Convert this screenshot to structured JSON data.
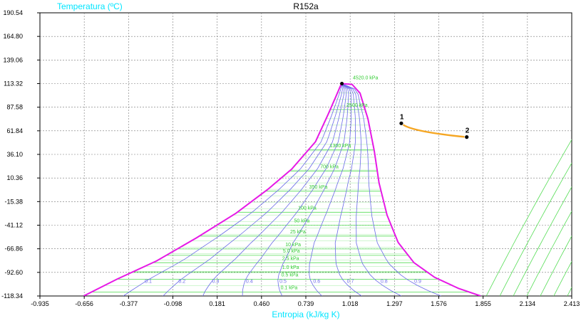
{
  "chart_data": {
    "type": "line",
    "title": "R152a",
    "xlabel": "Entropia (kJ/kg K)",
    "ylabel": "Temperatura (ºC)",
    "xlim": [
      -0.935,
      2.413
    ],
    "ylim": [
      -118.34,
      190.54
    ],
    "x_ticks": [
      "-0.935",
      "-0.656",
      "-0.377",
      "-0.098",
      "0.181",
      "0.460",
      "0.739",
      "1.018",
      "1.297",
      "1.576",
      "1.855",
      "2.134",
      "2.413"
    ],
    "y_ticks": [
      "190.54",
      "164.80",
      "139.06",
      "113.32",
      "87.58",
      "61.84",
      "36.10",
      "10.36",
      "-15.38",
      "-41.12",
      "-66.86",
      "-92.60",
      "-118.34"
    ],
    "grid": true,
    "colors": {
      "saturation": "#e619e6",
      "quality": "#6a6ae8",
      "isobar": "#55dd55",
      "process": "#f5a623",
      "grid": "#777777"
    },
    "saturation_dome": {
      "name": "",
      "liquid": {
        "x": [
          -0.66,
          -0.45,
          -0.2,
          0.05,
          0.3,
          0.5,
          0.65,
          0.8,
          0.88,
          0.93,
          0.96
        ],
        "y": [
          -118.34,
          -100,
          -80,
          -55,
          -28,
          -2,
          20,
          50,
          80,
          100,
          112
        ]
      },
      "critical": {
        "x": 0.966,
        "y": 113.3
      },
      "vapor": {
        "x": [
          0.966,
          1.03,
          1.08,
          1.13,
          1.17,
          1.2,
          1.25,
          1.32,
          1.42,
          1.55,
          1.7,
          1.84
        ],
        "y": [
          113.3,
          112.5,
          103,
          75,
          40,
          5,
          -30,
          -60,
          -82,
          -98,
          -110,
          -118.34
        ]
      }
    },
    "quality_lines": {
      "labels": [
        "0.1",
        "0.2",
        "0.3",
        "0.4",
        "0.5",
        "0.6",
        "0.7",
        "0.8",
        "0.9"
      ],
      "label_y": -104
    },
    "isobar_labels": [
      {
        "text": "4520.0 kPa",
        "x": 1.035,
        "y": 118
      },
      {
        "text": "2500 kPa",
        "x": 0.995,
        "y": 88
      },
      {
        "text": "1300 kPa",
        "x": 0.89,
        "y": 44
      },
      {
        "text": "700 kPa",
        "x": 0.83,
        "y": 21
      },
      {
        "text": "350 kPa",
        "x": 0.76,
        "y": -1
      },
      {
        "text": "100 kPa",
        "x": 0.69,
        "y": -24
      },
      {
        "text": "50 kPa",
        "x": 0.665,
        "y": -38
      },
      {
        "text": "25 kPa",
        "x": 0.64,
        "y": -50
      },
      {
        "text": "10 kPa",
        "x": 0.61,
        "y": -64
      },
      {
        "text": "5.0 kPa",
        "x": 0.595,
        "y": -71
      },
      {
        "text": "2.5 kPa",
        "x": 0.59,
        "y": -79
      },
      {
        "text": "1.0 kPa",
        "x": 0.59,
        "y": -89
      },
      {
        "text": "0.5 kPa",
        "x": 0.585,
        "y": -97
      },
      {
        "text": "0.1 kPa",
        "x": 0.58,
        "y": -111
      }
    ],
    "process": {
      "points": [
        {
          "label": "1",
          "x": 1.34,
          "y": 70
        },
        {
          "label": "2",
          "x": 1.752,
          "y": 55
        }
      ]
    }
  }
}
